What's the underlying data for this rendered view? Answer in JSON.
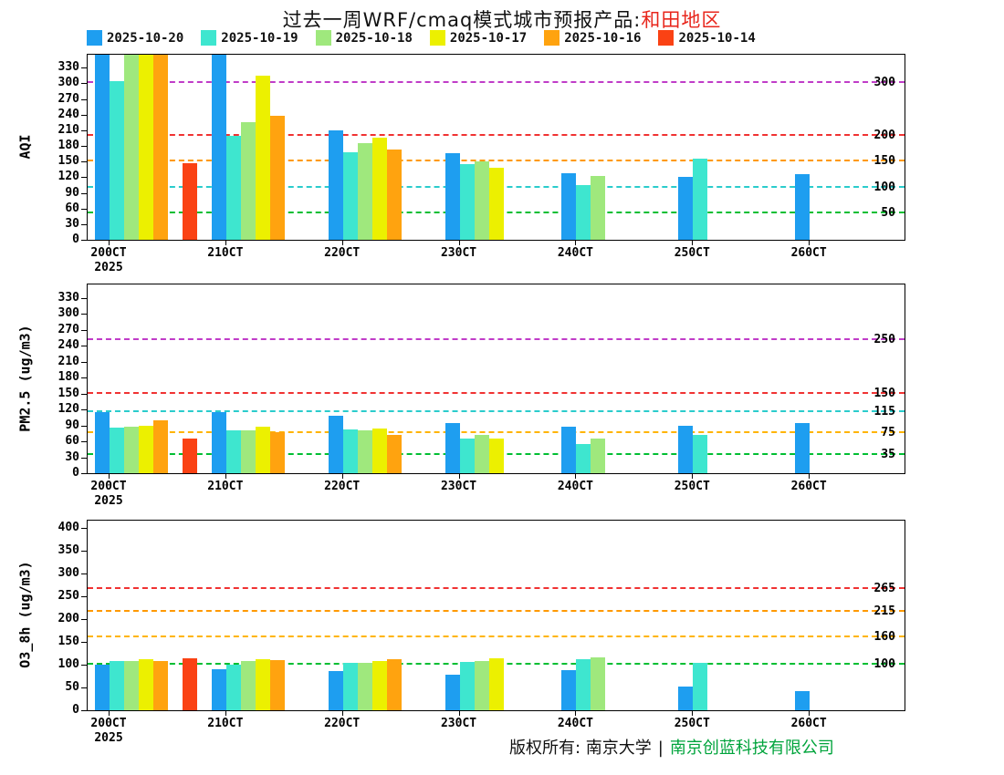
{
  "title": {
    "main": "过去一周WRF/cmaq模式城市预报产品:",
    "region": "和田地区"
  },
  "legend": {
    "position": "top",
    "items": [
      {
        "label": "2025-10-20",
        "color": "#1e9ef0"
      },
      {
        "label": "2025-10-19",
        "color": "#3ee6cf"
      },
      {
        "label": "2025-10-18",
        "color": "#9fe87d"
      },
      {
        "label": "2025-10-17",
        "color": "#ecf000"
      },
      {
        "label": "2025-10-16",
        "color": "#ffa30f"
      },
      {
        "label": "2025-10-14",
        "color": "#fa4214"
      }
    ]
  },
  "x_axis": {
    "year_label": "2025"
  },
  "footer": {
    "owner": "版权所有: 南京大学",
    "separator": "|",
    "company": "南京创蓝科技有限公司"
  },
  "chart_data": [
    {
      "type": "bar",
      "title": "",
      "ylabel": "AQI",
      "xlabel": "",
      "ylim": [
        0,
        355
      ],
      "grid": false,
      "yticks": [
        0,
        30,
        60,
        90,
        120,
        150,
        180,
        210,
        240,
        270,
        300,
        330
      ],
      "categories": [
        "200CT",
        "210CT",
        "220CT",
        "230CT",
        "240CT",
        "250CT",
        "260CT"
      ],
      "ref_lines": [
        {
          "value": 50,
          "label": "50",
          "color": "#00be32"
        },
        {
          "value": 100,
          "label": "100",
          "color": "#2acccc"
        },
        {
          "value": 150,
          "label": "150",
          "color": "#ff9900"
        },
        {
          "value": 200,
          "label": "200",
          "color": "#f03232"
        },
        {
          "value": 300,
          "label": "300",
          "color": "#c03cc8"
        }
      ],
      "series": [
        {
          "name": "2025-10-20",
          "color": "#1e9ef0",
          "slot": 0,
          "values": [
            355,
            355,
            210,
            166,
            128,
            121,
            126
          ]
        },
        {
          "name": "2025-10-19",
          "color": "#3ee6cf",
          "slot": 1,
          "values": [
            305,
            200,
            168,
            146,
            105,
            155,
            null
          ]
        },
        {
          "name": "2025-10-18",
          "color": "#9fe87d",
          "slot": 2,
          "values": [
            355,
            225,
            185,
            151,
            123,
            null,
            null
          ]
        },
        {
          "name": "2025-10-17",
          "color": "#ecf000",
          "slot": 3,
          "values": [
            355,
            315,
            196,
            139,
            null,
            null,
            null
          ]
        },
        {
          "name": "2025-10-16",
          "color": "#ffa30f",
          "slot": 4,
          "values": [
            355,
            237,
            174,
            null,
            null,
            null,
            null
          ]
        },
        {
          "name": "2025-10-14",
          "color": "#fa4214",
          "slot": 6,
          "values": [
            147,
            null,
            null,
            null,
            null,
            null,
            null
          ]
        }
      ]
    },
    {
      "type": "bar",
      "title": "",
      "ylabel": "PM2.5 (ug/m3)",
      "xlabel": "",
      "ylim": [
        0,
        355
      ],
      "grid": false,
      "yticks": [
        0,
        30,
        60,
        90,
        120,
        150,
        180,
        210,
        240,
        270,
        300,
        330
      ],
      "categories": [
        "200CT",
        "210CT",
        "220CT",
        "230CT",
        "240CT",
        "250CT",
        "260CT"
      ],
      "ref_lines": [
        {
          "value": 35,
          "label": "35",
          "color": "#00be32"
        },
        {
          "value": 75,
          "label": "75",
          "color": "#ffb400"
        },
        {
          "value": 115,
          "label": "115",
          "color": "#2acccc"
        },
        {
          "value": 150,
          "label": "150",
          "color": "#f03232"
        },
        {
          "value": 250,
          "label": "250",
          "color": "#c03cc8"
        }
      ],
      "series": [
        {
          "name": "2025-10-20",
          "color": "#1e9ef0",
          "slot": 0,
          "values": [
            115,
            115,
            108,
            95,
            88,
            90,
            95
          ]
        },
        {
          "name": "2025-10-19",
          "color": "#3ee6cf",
          "slot": 1,
          "values": [
            85,
            80,
            82,
            65,
            55,
            72,
            null
          ]
        },
        {
          "name": "2025-10-18",
          "color": "#9fe87d",
          "slot": 2,
          "values": [
            88,
            80,
            80,
            72,
            65,
            null,
            null
          ]
        },
        {
          "name": "2025-10-17",
          "color": "#ecf000",
          "slot": 3,
          "values": [
            90,
            88,
            84,
            65,
            null,
            null,
            null
          ]
        },
        {
          "name": "2025-10-16",
          "color": "#ffa30f",
          "slot": 4,
          "values": [
            100,
            78,
            72,
            null,
            null,
            null,
            null
          ]
        },
        {
          "name": "2025-10-14",
          "color": "#fa4214",
          "slot": 6,
          "values": [
            65,
            null,
            null,
            null,
            null,
            null,
            null
          ]
        }
      ]
    },
    {
      "type": "bar",
      "title": "",
      "ylabel": "O3_8h (ug/m3)",
      "xlabel": "",
      "ylim": [
        0,
        415
      ],
      "grid": false,
      "yticks": [
        0,
        50,
        100,
        150,
        200,
        250,
        300,
        350,
        400
      ],
      "categories": [
        "200CT",
        "210CT",
        "220CT",
        "230CT",
        "240CT",
        "250CT",
        "260CT"
      ],
      "ref_lines": [
        {
          "value": 100,
          "label": "100",
          "color": "#00be32"
        },
        {
          "value": 160,
          "label": "160",
          "color": "#ffb400"
        },
        {
          "value": 215,
          "label": "215",
          "color": "#ff9900"
        },
        {
          "value": 265,
          "label": "265",
          "color": "#f03232"
        }
      ],
      "series": [
        {
          "name": "2025-10-20",
          "color": "#1e9ef0",
          "slot": 0,
          "values": [
            100,
            90,
            85,
            78,
            87,
            52,
            42
          ]
        },
        {
          "name": "2025-10-19",
          "color": "#3ee6cf",
          "slot": 1,
          "values": [
            107,
            100,
            103,
            105,
            112,
            103,
            null
          ]
        },
        {
          "name": "2025-10-18",
          "color": "#9fe87d",
          "slot": 2,
          "values": [
            108,
            107,
            103,
            107,
            115,
            null,
            null
          ]
        },
        {
          "name": "2025-10-17",
          "color": "#ecf000",
          "slot": 3,
          "values": [
            112,
            112,
            107,
            113,
            null,
            null,
            null
          ]
        },
        {
          "name": "2025-10-16",
          "color": "#ffa30f",
          "slot": 4,
          "values": [
            108,
            110,
            112,
            null,
            null,
            null,
            null
          ]
        },
        {
          "name": "2025-10-14",
          "color": "#fa4214",
          "slot": 6,
          "values": [
            113,
            null,
            null,
            null,
            null,
            null,
            null
          ]
        }
      ]
    }
  ]
}
